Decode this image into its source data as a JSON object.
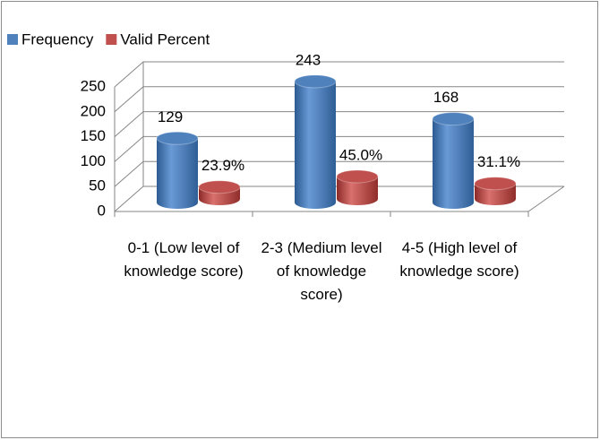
{
  "chart_data": {
    "type": "bar3d",
    "categories": [
      "0-1 (Low level of knowledge score)",
      "2-3 (Medium level of knowledge score)",
      "4-5 (High level of knowledge score)"
    ],
    "series": [
      {
        "name": "Frequency",
        "color": "#4f81bd",
        "values": [
          129,
          243,
          168
        ]
      },
      {
        "name": "Valid Percent",
        "color": "#c0504d",
        "values": [
          23.9,
          45.0,
          31.1
        ],
        "value_labels": [
          "23.9%",
          "45.0%",
          "31.1%"
        ]
      }
    ],
    "ylim": [
      0,
      250
    ],
    "yticks": [
      0,
      50,
      100,
      150,
      200,
      250
    ],
    "grid": true,
    "legend": "top-left"
  }
}
